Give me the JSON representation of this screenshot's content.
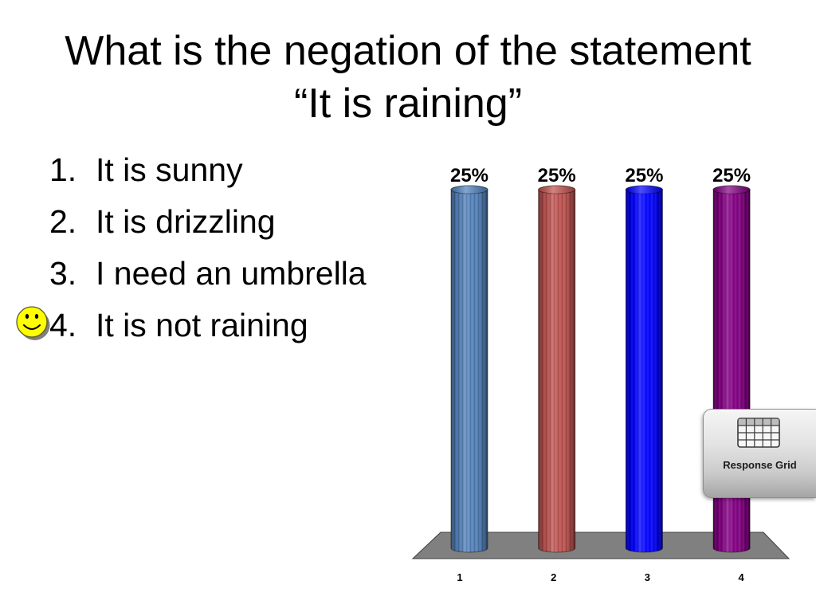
{
  "slide": {
    "title": {
      "line1": "What is the negation of the statement",
      "line2": "“It is raining”"
    },
    "answers": [
      {
        "number": "1.",
        "text": "It is sunny"
      },
      {
        "number": "2.",
        "text": "It is drizzling"
      },
      {
        "number": "3.",
        "text": "I need an umbrella"
      },
      {
        "number": "4.",
        "text": "It is not raining",
        "correct": true
      }
    ]
  },
  "correct_marker": {
    "icon": "smiley-face-icon",
    "color": "#FFFF00"
  },
  "response_grid": {
    "label": "Response Grid",
    "icon": "grid-table-icon"
  },
  "chart_data": {
    "type": "bar",
    "categories": [
      "1",
      "2",
      "3",
      "4"
    ],
    "values": [
      25,
      25,
      25,
      25
    ],
    "data_labels": [
      "25%",
      "25%",
      "25%",
      "25%"
    ],
    "colors": [
      "#4F81BD",
      "#C0504D",
      "#0000FF",
      "#800080"
    ],
    "grid": false
  }
}
